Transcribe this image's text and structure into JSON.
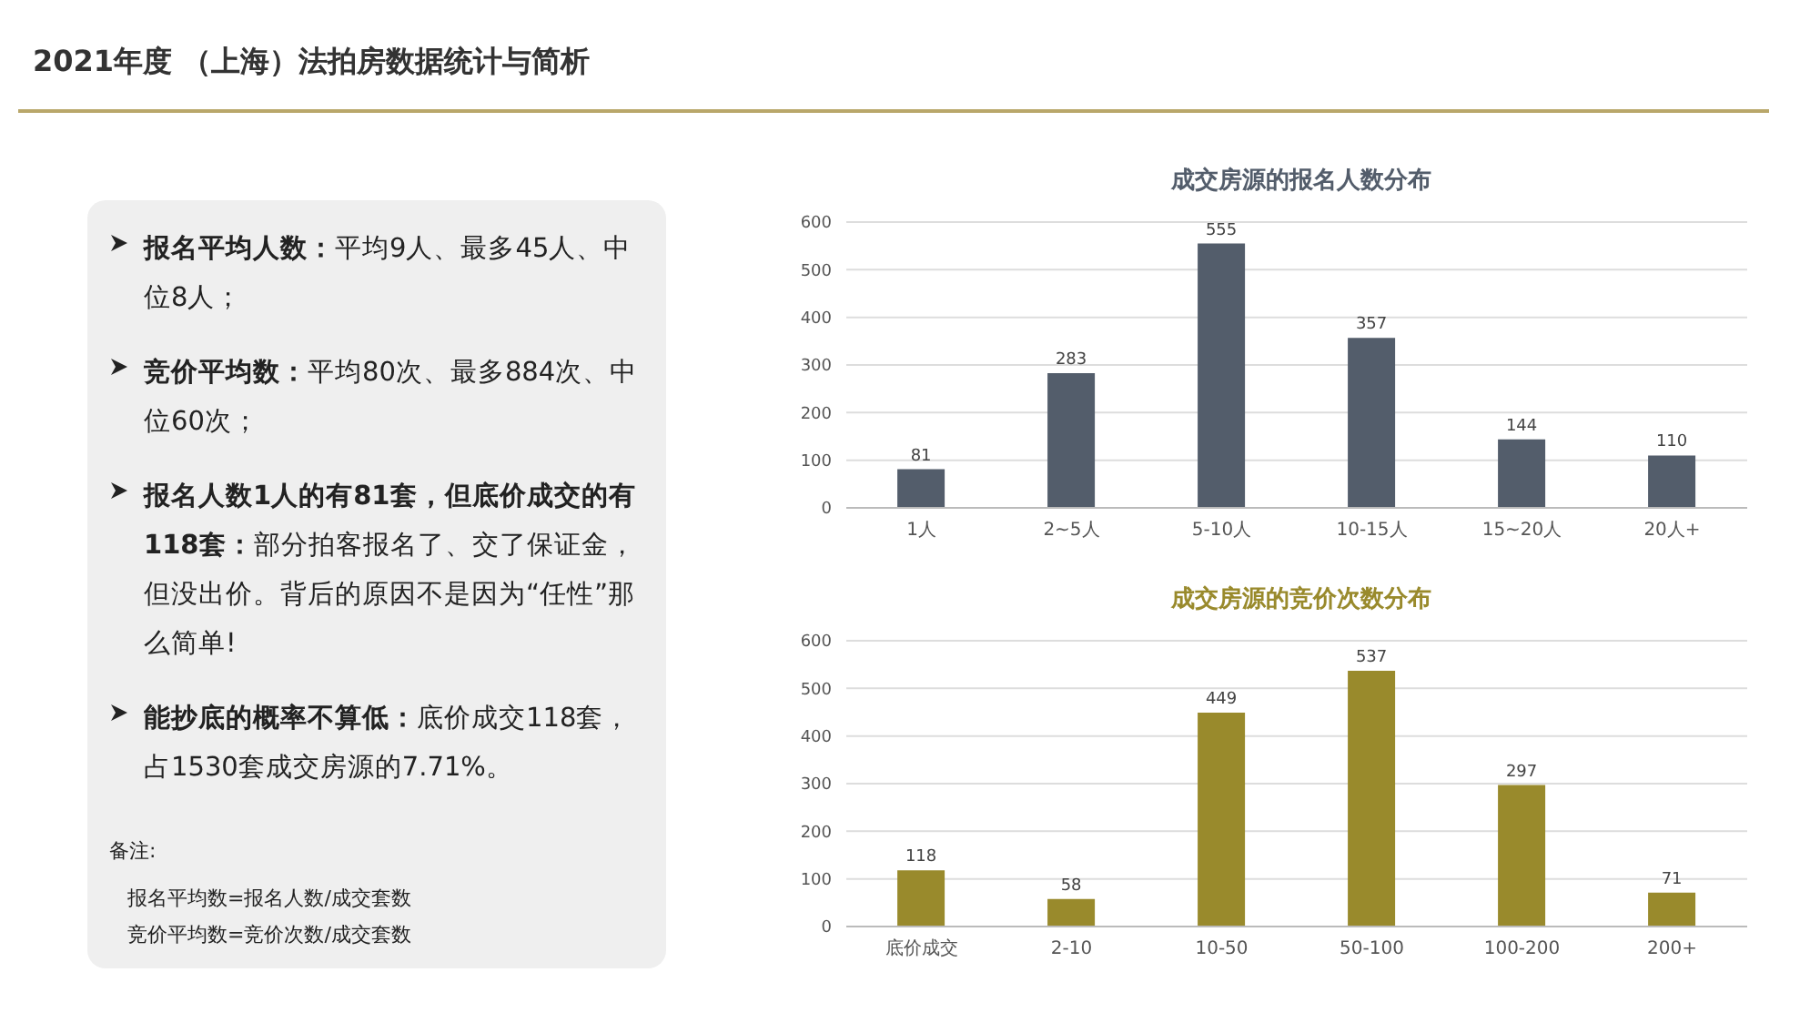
{
  "chart_data": [
    {
      "type": "other",
      "title": "2021年度 （上海）法拍房数据统计与简析",
      "annotations": [
        "报名平均人数：",
        "平均9人、最多45人、中位8人；",
        "竞价平均数：",
        "平均80次、最多884次、中位60次；",
        "报名人数1人的有81套，但底价成交的有118套：",
        "部分拍客报名了、交了保证金，但没出价。背后的原因不是因为“任性”那么简单!",
        "能抄底的概率不算低：",
        "底价成交118套，占1530套成交房源的7.71%。",
        "备注:",
        "报名平均数=报名人数/成交套数",
        "竞价平均数=竞价次数/成交套数"
      ]
    },
    {
      "type": "bar",
      "title": "成交房源的报名人数分布",
      "categories": [
        "1人",
        "2~5人",
        "5-10人",
        "10-15人",
        "15~20人",
        "20人+"
      ],
      "values": [
        81,
        283,
        555,
        357,
        144,
        110
      ],
      "color": "#535d6b",
      "ylim": [
        0,
        600
      ],
      "yticks": [
        0,
        100,
        200,
        300,
        400,
        500,
        600
      ],
      "grid": "y",
      "data_labels": true
    },
    {
      "type": "bar",
      "title": "成交房源的竞价次数分布",
      "categories": [
        "底价成交",
        "2-10",
        "10-50",
        "50-100",
        "100-200",
        "200+"
      ],
      "values": [
        118,
        58,
        449,
        537,
        297,
        71
      ],
      "color": "#998a2c",
      "ylim": [
        0,
        600
      ],
      "yticks": [
        0,
        100,
        200,
        300,
        400,
        500,
        600
      ],
      "grid": "y",
      "data_labels": true
    }
  ]
}
